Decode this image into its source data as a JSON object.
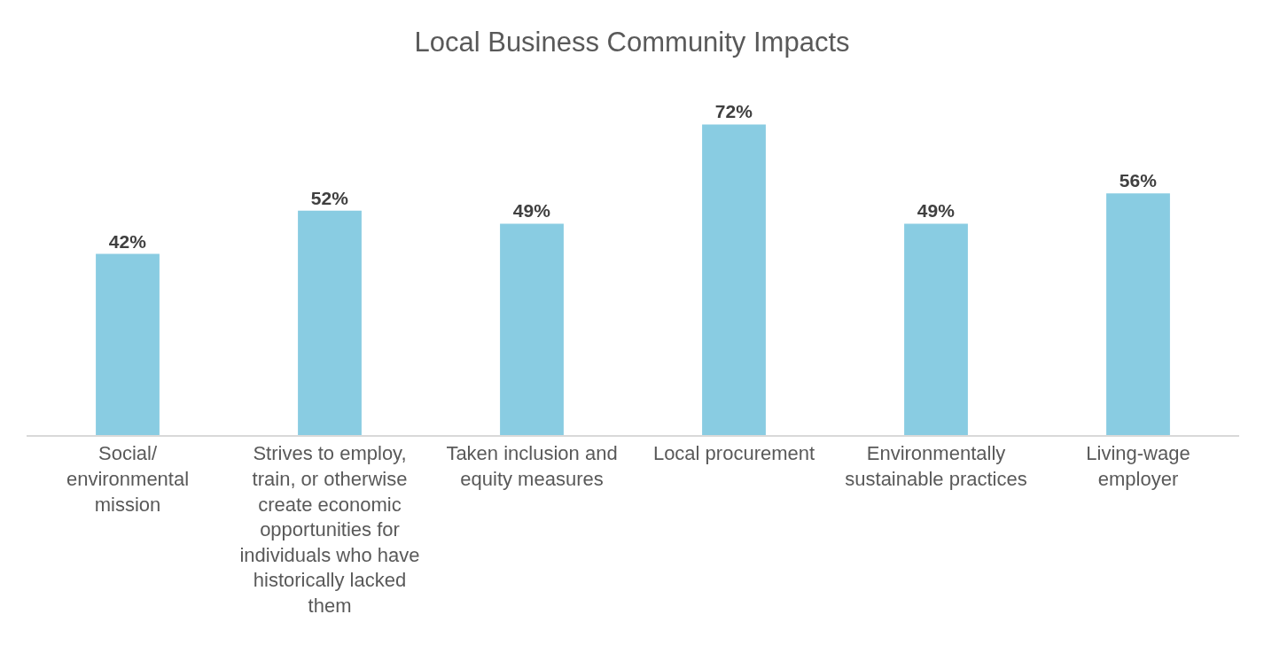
{
  "chart_data": {
    "type": "bar",
    "title": "Local Business Community Impacts",
    "categories": [
      "Social/ environmental mission",
      "Strives to employ, train, or otherwise create economic opportunities for individuals who have historically lacked them",
      "Taken inclusion and equity measures",
      "Local procurement",
      "Environmentally sustainable practices",
      "Living-wage employer"
    ],
    "values": [
      42,
      52,
      49,
      72,
      49,
      56
    ],
    "color": "#89cce2",
    "value_labels": [
      "42%",
      "52%",
      "49%",
      "72%",
      "49%",
      "56%"
    ]
  }
}
